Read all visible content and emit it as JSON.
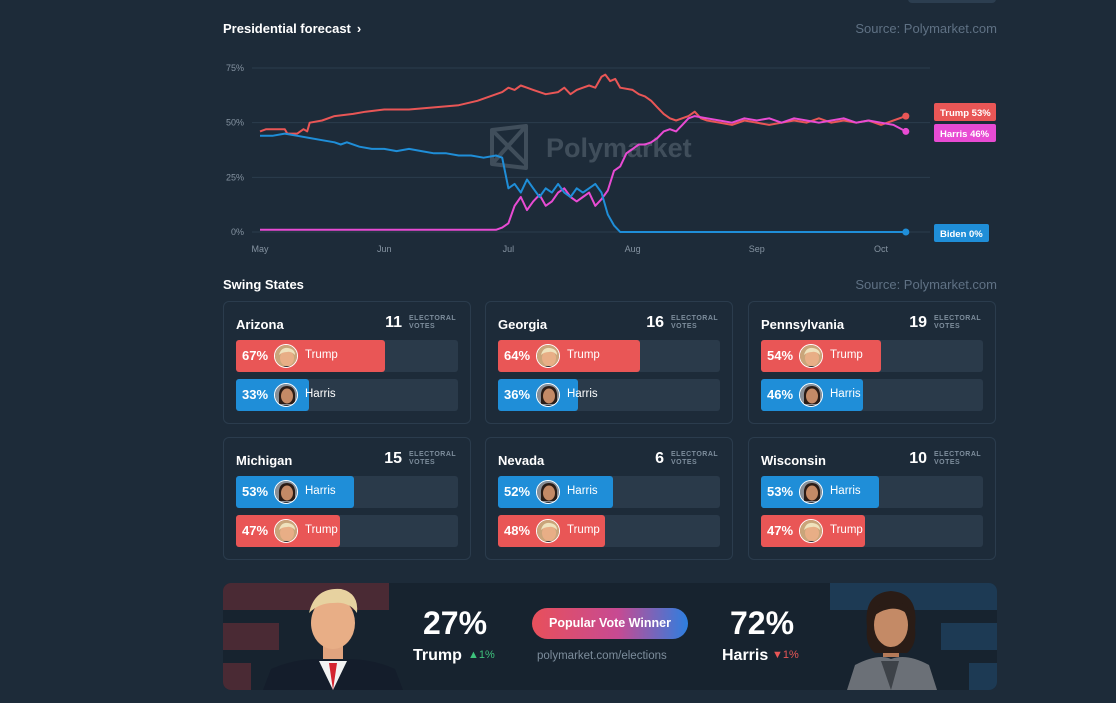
{
  "header": {
    "forecast_title": "Presidential forecast",
    "chevron": "chevron-right-icon",
    "source": "Source: Polymarket.com",
    "watermark": "Polymarket"
  },
  "chart_data": {
    "type": "line",
    "title": "Presidential forecast",
    "yticks": [
      "75%",
      "50%",
      "25%",
      "0%"
    ],
    "ylim": [
      0,
      75
    ],
    "xticks": [
      "May",
      "Jun",
      "Jul",
      "Aug",
      "Sep",
      "Oct"
    ],
    "x_month_index": [
      0,
      1,
      2,
      3,
      4,
      5
    ],
    "xlim": [
      0,
      5.35
    ],
    "series": [
      {
        "name": "Trump",
        "label": "Trump 53%",
        "color": "#e95656",
        "points": [
          [
            0,
            46
          ],
          [
            0.05,
            47
          ],
          [
            0.15,
            47
          ],
          [
            0.2,
            47
          ],
          [
            0.22,
            45
          ],
          [
            0.3,
            45
          ],
          [
            0.35,
            47
          ],
          [
            0.38,
            46
          ],
          [
            0.4,
            50
          ],
          [
            0.5,
            51
          ],
          [
            0.6,
            53
          ],
          [
            0.75,
            54
          ],
          [
            0.85,
            55
          ],
          [
            1.0,
            56
          ],
          [
            1.2,
            56
          ],
          [
            1.4,
            57
          ],
          [
            1.6,
            58
          ],
          [
            1.75,
            60
          ],
          [
            1.85,
            62
          ],
          [
            1.95,
            64
          ],
          [
            2.0,
            66
          ],
          [
            2.05,
            65
          ],
          [
            2.1,
            67
          ],
          [
            2.15,
            66
          ],
          [
            2.2,
            65
          ],
          [
            2.3,
            63
          ],
          [
            2.4,
            64
          ],
          [
            2.45,
            66
          ],
          [
            2.5,
            63
          ],
          [
            2.55,
            65
          ],
          [
            2.6,
            66
          ],
          [
            2.65,
            67
          ],
          [
            2.7,
            66
          ],
          [
            2.75,
            71
          ],
          [
            2.78,
            72
          ],
          [
            2.82,
            69
          ],
          [
            2.86,
            70
          ],
          [
            2.9,
            66
          ],
          [
            3.0,
            65
          ],
          [
            3.05,
            63
          ],
          [
            3.1,
            62
          ],
          [
            3.15,
            60
          ],
          [
            3.2,
            57
          ],
          [
            3.25,
            54
          ],
          [
            3.3,
            52
          ],
          [
            3.35,
            51
          ],
          [
            3.45,
            53
          ],
          [
            3.5,
            55
          ],
          [
            3.55,
            52
          ],
          [
            3.6,
            51
          ],
          [
            3.7,
            50
          ],
          [
            3.8,
            49
          ],
          [
            3.9,
            51
          ],
          [
            4.0,
            50
          ],
          [
            4.1,
            49
          ],
          [
            4.2,
            50
          ],
          [
            4.3,
            51
          ],
          [
            4.4,
            50
          ],
          [
            4.5,
            52
          ],
          [
            4.6,
            50
          ],
          [
            4.7,
            51
          ],
          [
            4.8,
            50
          ],
          [
            4.9,
            51
          ],
          [
            5.0,
            49
          ],
          [
            5.1,
            51
          ],
          [
            5.2,
            53
          ]
        ]
      },
      {
        "name": "Harris",
        "label": "Harris 46%",
        "color": "#e84bd3",
        "points": [
          [
            0,
            1
          ],
          [
            0.5,
            1
          ],
          [
            1.0,
            1
          ],
          [
            1.5,
            1
          ],
          [
            1.8,
            1
          ],
          [
            1.9,
            1
          ],
          [
            1.95,
            2
          ],
          [
            2.0,
            4
          ],
          [
            2.05,
            12
          ],
          [
            2.1,
            16
          ],
          [
            2.15,
            10
          ],
          [
            2.2,
            14
          ],
          [
            2.25,
            17
          ],
          [
            2.3,
            12
          ],
          [
            2.35,
            14
          ],
          [
            2.4,
            18
          ],
          [
            2.45,
            20
          ],
          [
            2.5,
            16
          ],
          [
            2.55,
            14
          ],
          [
            2.6,
            16
          ],
          [
            2.65,
            18
          ],
          [
            2.7,
            12
          ],
          [
            2.75,
            15
          ],
          [
            2.8,
            19
          ],
          [
            2.85,
            28
          ],
          [
            2.9,
            30
          ],
          [
            2.95,
            36
          ],
          [
            3.0,
            38
          ],
          [
            3.05,
            40
          ],
          [
            3.1,
            40
          ],
          [
            3.15,
            41
          ],
          [
            3.2,
            43
          ],
          [
            3.25,
            46
          ],
          [
            3.3,
            47
          ],
          [
            3.35,
            46
          ],
          [
            3.4,
            49
          ],
          [
            3.45,
            52
          ],
          [
            3.5,
            53
          ],
          [
            3.6,
            52
          ],
          [
            3.7,
            51
          ],
          [
            3.8,
            50
          ],
          [
            3.9,
            52
          ],
          [
            4.0,
            51
          ],
          [
            4.1,
            52
          ],
          [
            4.2,
            50
          ],
          [
            4.3,
            52
          ],
          [
            4.4,
            51
          ],
          [
            4.5,
            50
          ],
          [
            4.6,
            51
          ],
          [
            4.7,
            52
          ],
          [
            4.8,
            50
          ],
          [
            4.9,
            51
          ],
          [
            5.0,
            50
          ],
          [
            5.1,
            49
          ],
          [
            5.2,
            46
          ]
        ]
      },
      {
        "name": "Biden",
        "label": "Biden 0%",
        "color": "#1f8ed8",
        "points": [
          [
            0,
            44
          ],
          [
            0.1,
            44
          ],
          [
            0.2,
            45
          ],
          [
            0.3,
            44
          ],
          [
            0.4,
            43
          ],
          [
            0.5,
            42
          ],
          [
            0.6,
            41
          ],
          [
            0.65,
            40
          ],
          [
            0.7,
            41
          ],
          [
            0.8,
            39
          ],
          [
            0.9,
            38
          ],
          [
            1.0,
            38
          ],
          [
            1.1,
            37
          ],
          [
            1.2,
            38
          ],
          [
            1.3,
            37
          ],
          [
            1.4,
            36
          ],
          [
            1.5,
            36
          ],
          [
            1.6,
            35
          ],
          [
            1.7,
            35
          ],
          [
            1.8,
            34
          ],
          [
            1.9,
            35
          ],
          [
            1.95,
            34
          ],
          [
            2.0,
            20
          ],
          [
            2.05,
            22
          ],
          [
            2.1,
            18
          ],
          [
            2.15,
            24
          ],
          [
            2.2,
            20
          ],
          [
            2.25,
            16
          ],
          [
            2.3,
            20
          ],
          [
            2.35,
            18
          ],
          [
            2.4,
            22
          ],
          [
            2.45,
            18
          ],
          [
            2.5,
            16
          ],
          [
            2.55,
            20
          ],
          [
            2.6,
            18
          ],
          [
            2.65,
            20
          ],
          [
            2.7,
            22
          ],
          [
            2.75,
            18
          ],
          [
            2.8,
            8
          ],
          [
            2.85,
            3
          ],
          [
            2.9,
            0
          ],
          [
            3.0,
            0
          ],
          [
            3.5,
            0
          ],
          [
            4.0,
            0
          ],
          [
            4.5,
            0
          ],
          [
            5.0,
            0
          ],
          [
            5.2,
            0
          ]
        ]
      }
    ]
  },
  "swing": {
    "title": "Swing States",
    "source": "Source: Polymarket.com",
    "ev_label_1": "ELECTORAL",
    "ev_label_2": "VOTES",
    "states": [
      {
        "name": "Arizona",
        "ev": "11",
        "rows": [
          {
            "pct": "67%",
            "name": "Trump",
            "value": 67,
            "color": "red",
            "avatar": "trump-avatar-icon"
          },
          {
            "pct": "33%",
            "name": "Harris",
            "value": 33,
            "color": "blue",
            "avatar": "harris-avatar-icon"
          }
        ]
      },
      {
        "name": "Georgia",
        "ev": "16",
        "rows": [
          {
            "pct": "64%",
            "name": "Trump",
            "value": 64,
            "color": "red",
            "avatar": "trump-avatar-icon"
          },
          {
            "pct": "36%",
            "name": "Harris",
            "value": 36,
            "color": "blue",
            "avatar": "harris-avatar-icon"
          }
        ]
      },
      {
        "name": "Pennsylvania",
        "ev": "19",
        "rows": [
          {
            "pct": "54%",
            "name": "Trump",
            "value": 54,
            "color": "red",
            "avatar": "trump-avatar-icon"
          },
          {
            "pct": "46%",
            "name": "Harris",
            "value": 46,
            "color": "blue",
            "avatar": "harris-avatar-icon"
          }
        ]
      },
      {
        "name": "Michigan",
        "ev": "15",
        "rows": [
          {
            "pct": "53%",
            "name": "Harris",
            "value": 53,
            "color": "blue",
            "avatar": "harris-avatar-icon"
          },
          {
            "pct": "47%",
            "name": "Trump",
            "value": 47,
            "color": "red",
            "avatar": "trump-avatar-icon"
          }
        ]
      },
      {
        "name": "Nevada",
        "ev": "6",
        "rows": [
          {
            "pct": "52%",
            "name": "Harris",
            "value": 52,
            "color": "blue",
            "avatar": "harris-avatar-icon"
          },
          {
            "pct": "48%",
            "name": "Trump",
            "value": 48,
            "color": "red",
            "avatar": "trump-avatar-icon"
          }
        ]
      },
      {
        "name": "Wisconsin",
        "ev": "10",
        "rows": [
          {
            "pct": "53%",
            "name": "Harris",
            "value": 53,
            "color": "blue",
            "avatar": "harris-avatar-icon"
          },
          {
            "pct": "47%",
            "name": "Trump",
            "value": 47,
            "color": "red",
            "avatar": "trump-avatar-icon"
          }
        ]
      }
    ]
  },
  "popular": {
    "trump_pct": "27%",
    "trump_name": "Trump",
    "trump_change": "▲1%",
    "harris_pct": "72%",
    "harris_name": "Harris",
    "harris_change": "▼1%",
    "pill": "Popular Vote Winner",
    "url": "polymarket.com/elections"
  },
  "colors": {
    "bg": "#1d2b39",
    "trump": "#e95656",
    "harris": "#e84bd3",
    "biden": "#1f8ed8",
    "grid": "#2b3c4d",
    "muted": "#5f7184"
  }
}
